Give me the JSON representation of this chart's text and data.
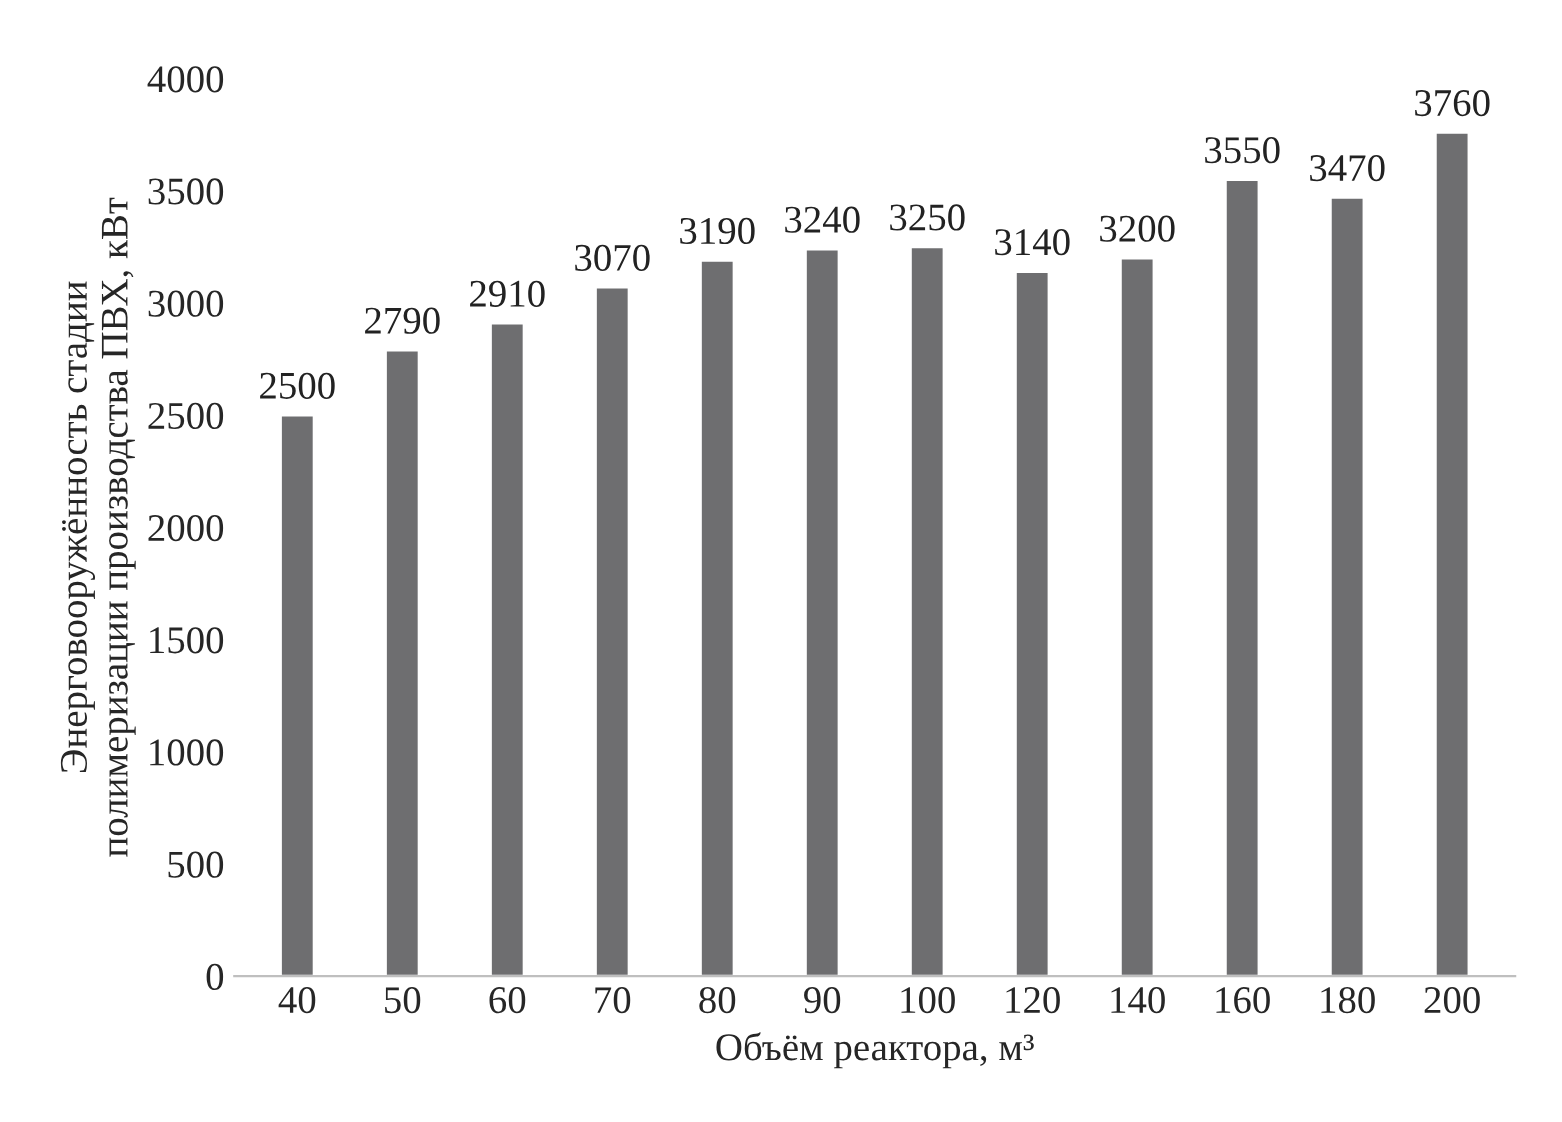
{
  "chart_data": {
    "type": "bar",
    "xlabel": "Объём реактора, м³",
    "ylabel": "Энерговооружённость стадии\nполимеризации производства ПВХ, кВт",
    "categories": [
      "40",
      "50",
      "60",
      "70",
      "80",
      "90",
      "100",
      "120",
      "140",
      "160",
      "180",
      "200"
    ],
    "values": [
      2500,
      2790,
      2910,
      3070,
      3190,
      3240,
      3250,
      3140,
      3200,
      3550,
      3470,
      3760
    ],
    "color": "#6e6e70",
    "ylim": [
      0,
      4000
    ],
    "yticks": [
      0,
      500,
      1000,
      1500,
      2000,
      2500,
      3000,
      3500,
      4000
    ],
    "data_labels": true,
    "grid": false,
    "legend": false
  }
}
